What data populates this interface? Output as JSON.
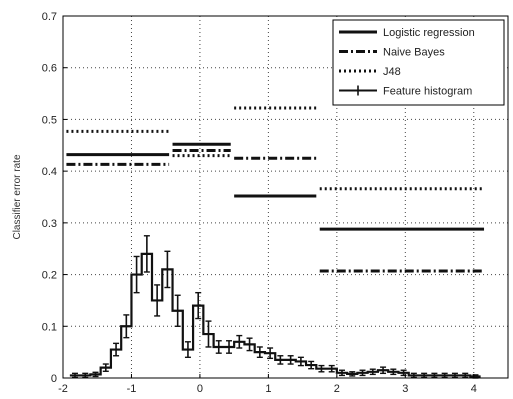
{
  "chart_data": {
    "type": "line",
    "title": "",
    "xlabel": "",
    "ylabel": "Classifier error rate",
    "xlim": [
      -2,
      4.5
    ],
    "ylim": [
      0,
      0.7
    ],
    "x_ticks": [
      -2,
      -1,
      0,
      1,
      2,
      3,
      4
    ],
    "x_tick_labels": [
      "-2",
      "-1",
      "0",
      "1",
      "2",
      "3",
      "4"
    ],
    "y_ticks": [
      0,
      0.1,
      0.2,
      0.3,
      0.4,
      0.5,
      0.6,
      0.7
    ],
    "y_tick_labels": [
      "0",
      "0.1",
      "0.2",
      "0.3",
      "0.4",
      "0.5",
      "0.6",
      "0.7"
    ],
    "grid": true,
    "legend_position": "top-right",
    "series": [
      {
        "name": "Logistic regression",
        "style": "solid",
        "segments": [
          {
            "x": [
              -1.95,
              -0.45
            ],
            "y": 0.432
          },
          {
            "x": [
              -0.4,
              0.45
            ],
            "y": 0.452
          },
          {
            "x": [
              0.5,
              1.7
            ],
            "y": 0.352
          },
          {
            "x": [
              1.75,
              4.15
            ],
            "y": 0.288
          }
        ]
      },
      {
        "name": "Naive Bayes",
        "style": "dashdot",
        "segments": [
          {
            "x": [
              -1.95,
              -0.45
            ],
            "y": 0.413
          },
          {
            "x": [
              -0.4,
              0.45
            ],
            "y": 0.44
          },
          {
            "x": [
              0.5,
              1.7
            ],
            "y": 0.425
          },
          {
            "x": [
              1.75,
              4.15
            ],
            "y": 0.207
          }
        ]
      },
      {
        "name": "J48",
        "style": "dotted",
        "segments": [
          {
            "x": [
              -1.95,
              -0.45
            ],
            "y": 0.477
          },
          {
            "x": [
              -0.4,
              0.45
            ],
            "y": 0.43
          },
          {
            "x": [
              0.5,
              1.7
            ],
            "y": 0.522
          },
          {
            "x": [
              1.75,
              4.15
            ],
            "y": 0.366
          }
        ]
      },
      {
        "name": "Feature histogram",
        "style": "errorbar",
        "bin_edges": [
          -1.9,
          -1.75,
          -1.6,
          -1.45,
          -1.3,
          -1.15,
          -1.0,
          -0.85,
          -0.7,
          -0.55,
          -0.4,
          -0.25,
          -0.1,
          0.05,
          0.2,
          0.35,
          0.5,
          0.65,
          0.8,
          0.95,
          1.1,
          1.25,
          1.4,
          1.55,
          1.7,
          1.85,
          2.0,
          2.15,
          2.3,
          2.45,
          2.6,
          2.75,
          2.9,
          3.05,
          3.2,
          3.35,
          3.5,
          3.65,
          3.8,
          3.95,
          4.1
        ],
        "values": [
          0.005,
          0.005,
          0.007,
          0.02,
          0.055,
          0.1,
          0.2,
          0.24,
          0.15,
          0.21,
          0.13,
          0.055,
          0.14,
          0.085,
          0.06,
          0.06,
          0.07,
          0.065,
          0.05,
          0.048,
          0.035,
          0.035,
          0.032,
          0.025,
          0.018,
          0.018,
          0.01,
          0.008,
          0.01,
          0.012,
          0.015,
          0.012,
          0.01,
          0.005,
          0.005,
          0.005,
          0.005,
          0.005,
          0.005,
          0.003
        ],
        "errors": [
          0.004,
          0.004,
          0.004,
          0.007,
          0.012,
          0.022,
          0.035,
          0.035,
          0.03,
          0.035,
          0.03,
          0.015,
          0.025,
          0.025,
          0.012,
          0.012,
          0.012,
          0.012,
          0.01,
          0.01,
          0.008,
          0.008,
          0.008,
          0.007,
          0.006,
          0.006,
          0.005,
          0.004,
          0.005,
          0.005,
          0.006,
          0.005,
          0.005,
          0.004,
          0.004,
          0.004,
          0.004,
          0.004,
          0.004,
          0.003
        ]
      }
    ],
    "colors": {
      "series": "#111111",
      "grid": "#444444",
      "axes": "#000000"
    }
  }
}
